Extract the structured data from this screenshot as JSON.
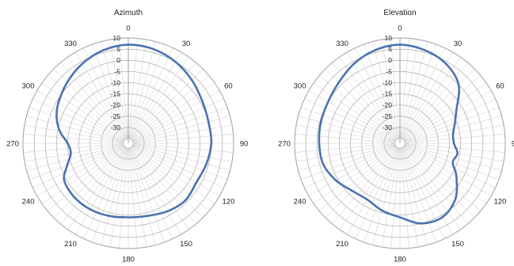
{
  "chart_data": [
    {
      "type": "polar-line",
      "title": "Azimuth",
      "radial_ticks": [
        10,
        5,
        0,
        -5,
        -10,
        -15,
        -20,
        -25,
        -30
      ],
      "radial_range": [
        -35,
        10
      ],
      "angle_ticks": [
        "0",
        "30",
        "60",
        "90",
        "120",
        "150",
        "180",
        "210",
        "240",
        "270",
        "300",
        "330"
      ],
      "grid": true,
      "series_color": "#4a73b1",
      "series": [
        {
          "angles": [
            0,
            15,
            30,
            45,
            60,
            75,
            90,
            105,
            120,
            135,
            150,
            165,
            180,
            195,
            210,
            225,
            240,
            250,
            260,
            270,
            280,
            290,
            300,
            315,
            330,
            345
          ],
          "values": [
            7,
            6.5,
            5,
            3,
            1,
            0,
            0,
            -1,
            -2,
            -1,
            -2,
            -3.5,
            -4,
            -3.5,
            -3,
            -3,
            -4,
            -8,
            -11,
            -10,
            -6,
            -3,
            -1,
            1.5,
            4,
            6
          ]
        }
      ]
    },
    {
      "type": "polar-line",
      "title": "Elevation",
      "radial_ticks": [
        10,
        5,
        0,
        -5,
        -10,
        -15,
        -20,
        -25,
        -30
      ],
      "radial_range": [
        -35,
        10
      ],
      "angle_ticks": [
        "0",
        "30",
        "60",
        "90",
        "120",
        "150",
        "180",
        "210",
        "240",
        "270",
        "300",
        "330"
      ],
      "grid": true,
      "series_color": "#4a73b1",
      "series": [
        {
          "angles": [
            0,
            15,
            30,
            45,
            60,
            70,
            80,
            90,
            100,
            110,
            120,
            135,
            150,
            165,
            180,
            195,
            210,
            225,
            240,
            255,
            270,
            285,
            300,
            315,
            330,
            345
          ],
          "values": [
            7,
            6,
            4,
            0,
            -8,
            -11,
            -13,
            -13,
            -11,
            -12,
            -8,
            -2,
            1,
            0,
            -4,
            -6,
            -8,
            -7,
            -4,
            -1.5,
            -1,
            -0.5,
            0,
            1.5,
            4,
            6
          ]
        }
      ]
    }
  ]
}
